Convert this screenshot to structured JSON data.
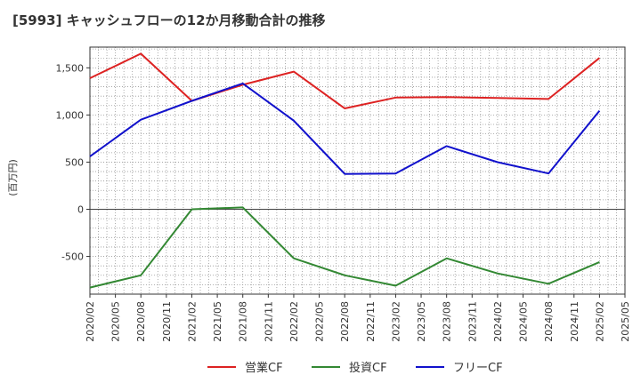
{
  "chart_data": {
    "type": "line",
    "title": "[5993]  キャッシュフローの12か月移動合計の推移",
    "ylabel": "(百万円)",
    "xlabel": "",
    "ylim": [
      -900,
      1720
    ],
    "yticks": [
      -500,
      0,
      500,
      1000,
      1500
    ],
    "ytick_labels": [
      "-500",
      "0",
      "500",
      "1,000",
      "1,500"
    ],
    "x_ticks": [
      "2020/02",
      "2020/05",
      "2020/08",
      "2020/11",
      "2021/02",
      "2021/05",
      "2021/08",
      "2021/11",
      "2022/02",
      "2022/05",
      "2022/08",
      "2022/11",
      "2023/02",
      "2023/05",
      "2023/08",
      "2023/11",
      "2024/02",
      "2024/05",
      "2024/08",
      "2024/11",
      "2025/02",
      "2025/05"
    ],
    "grid": true,
    "legend_position": "bottom",
    "series": [
      {
        "name": "営業CF",
        "color": "#dd2222",
        "x": [
          "2020/02",
          "2020/08",
          "2021/02",
          "2021/08",
          "2022/02",
          "2022/08",
          "2023/02",
          "2023/08",
          "2024/02",
          "2024/08",
          "2025/02"
        ],
        "values": [
          1390,
          1650,
          1150,
          1320,
          1460,
          1070,
          1185,
          1190,
          1180,
          1170,
          1605
        ]
      },
      {
        "name": "投資CF",
        "color": "#338833",
        "x": [
          "2020/02",
          "2020/08",
          "2021/02",
          "2021/08",
          "2022/02",
          "2022/08",
          "2023/02",
          "2023/08",
          "2024/02",
          "2024/08",
          "2025/02"
        ],
        "values": [
          -830,
          -700,
          0,
          20,
          -520,
          -700,
          -810,
          -520,
          -680,
          -790,
          -560
        ]
      },
      {
        "name": "フリーCF",
        "color": "#1111cc",
        "x": [
          "2020/02",
          "2020/08",
          "2021/02",
          "2021/08",
          "2022/02",
          "2022/08",
          "2023/02",
          "2023/08",
          "2024/02",
          "2024/08",
          "2025/02"
        ],
        "values": [
          560,
          950,
          1150,
          1335,
          940,
          375,
          380,
          670,
          500,
          380,
          1045
        ]
      }
    ]
  }
}
